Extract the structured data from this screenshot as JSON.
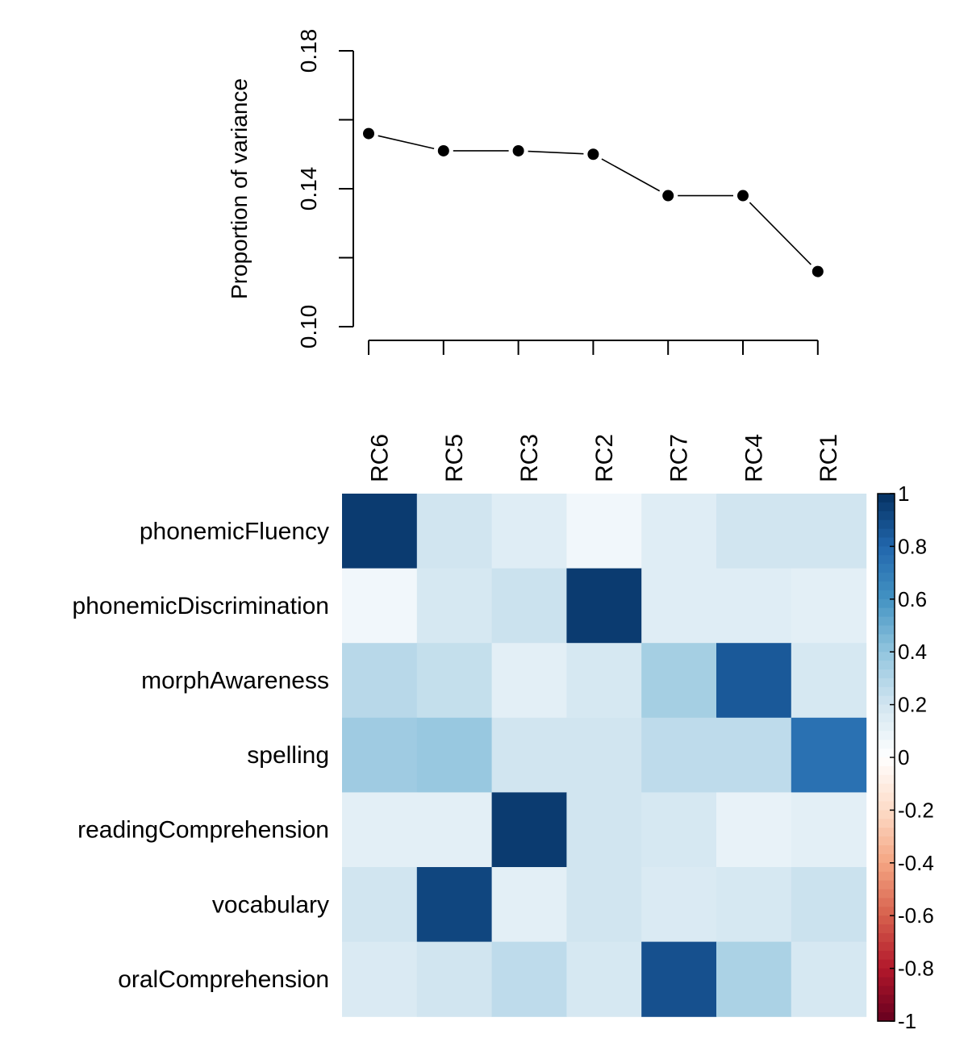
{
  "chart_data": [
    {
      "type": "line",
      "ylabel": "Proportion of variance",
      "categories": [
        "RC6",
        "RC5",
        "RC3",
        "RC2",
        "RC7",
        "RC4",
        "RC1"
      ],
      "values": [
        0.156,
        0.151,
        0.151,
        0.15,
        0.138,
        0.138,
        0.116
      ],
      "ylim": [
        0.1,
        0.18
      ],
      "yticks": [
        0.1,
        0.12,
        0.14,
        0.16,
        0.18
      ],
      "ytick_labels": [
        "0.10",
        "",
        "0.14",
        "",
        "0.18"
      ],
      "marker": "filled-circle",
      "grid": false
    },
    {
      "type": "heatmap",
      "columns": [
        "RC6",
        "RC5",
        "RC3",
        "RC2",
        "RC7",
        "RC4",
        "RC1"
      ],
      "rows": [
        "phonemicFluency",
        "phonemicDiscrimination",
        "morphAwareness",
        "spelling",
        "readingComprehension",
        "vocabulary",
        "oralComprehension"
      ],
      "values": [
        [
          0.96,
          0.2,
          0.14,
          0.06,
          0.14,
          0.2,
          0.2
        ],
        [
          0.06,
          0.18,
          0.22,
          0.96,
          0.14,
          0.14,
          0.12
        ],
        [
          0.28,
          0.24,
          0.12,
          0.18,
          0.34,
          0.85,
          0.18
        ],
        [
          0.36,
          0.38,
          0.2,
          0.2,
          0.26,
          0.26,
          0.75
        ],
        [
          0.12,
          0.12,
          0.96,
          0.2,
          0.18,
          0.1,
          0.12
        ],
        [
          0.2,
          0.92,
          0.12,
          0.2,
          0.16,
          0.18,
          0.22
        ],
        [
          0.16,
          0.2,
          0.26,
          0.18,
          0.88,
          0.32,
          0.18
        ]
      ],
      "color_range": [
        -1,
        1
      ],
      "colorbar_ticks": [
        1,
        0.8,
        0.6,
        0.4,
        0.2,
        0,
        -0.2,
        -0.4,
        -0.6,
        -0.8,
        -1
      ],
      "colorbar_labels": [
        "1",
        "0.8",
        "0.6",
        "0.4",
        "0.2",
        "0",
        "-0.2",
        "-0.4",
        "-0.6",
        "-0.8",
        "-1"
      ],
      "colors": {
        "negative": "#67001f",
        "neutral": "#ffffff",
        "positive": "#053061"
      },
      "legend": "right"
    }
  ]
}
